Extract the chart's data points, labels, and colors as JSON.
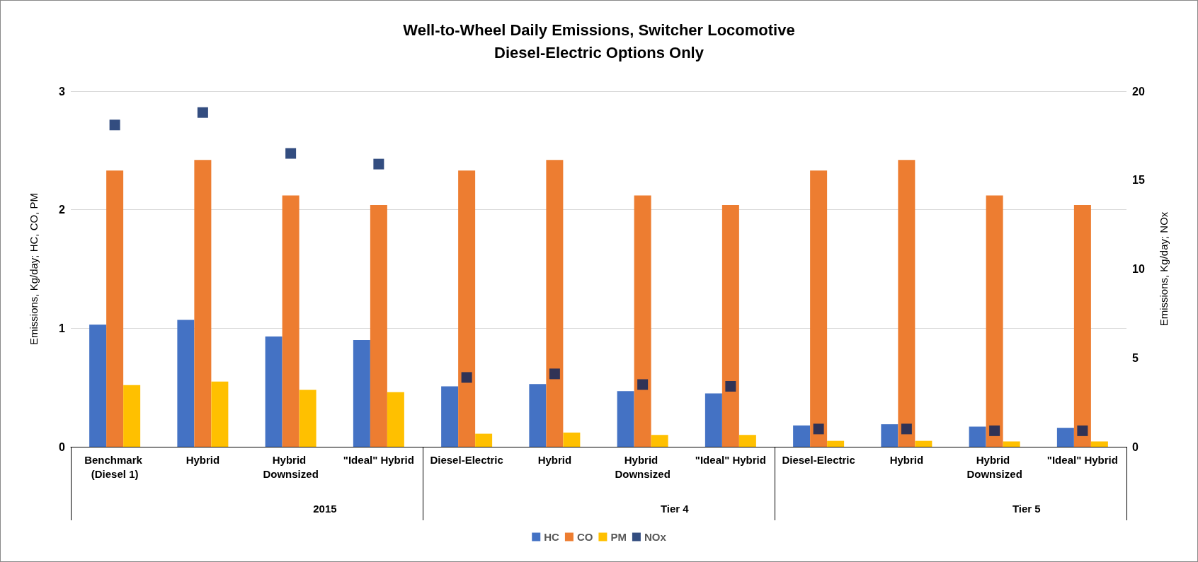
{
  "chart_data": {
    "type": "bar",
    "title": "Well-to-Wheel Daily Emissions, Switcher Locomotive\nDiesel-Electric Options Only",
    "ylabel": "Emissions, Kg/day; HC, CO, PM",
    "y2label": "Emissions, Kg/day; NOx",
    "categories": [
      "Benchmark (Diesel 1)",
      "Hybrid",
      "Hybrid Downsized",
      "\"Ideal\" Hybrid",
      "Diesel-Electric",
      "Hybrid",
      "Hybrid Downsized",
      "\"Ideal\" Hybrid",
      "Diesel-Electric",
      "Hybrid",
      "Hybrid Downsized",
      "\"Ideal\" Hybrid"
    ],
    "annotations": [
      "2015",
      "Tier 4",
      "Tier 5"
    ],
    "series": [
      {
        "name": "HC",
        "color": "#4472c4",
        "values": [
          1.03,
          1.07,
          0.93,
          0.9,
          0.51,
          0.53,
          0.47,
          0.45,
          0.18,
          0.19,
          0.17,
          0.16
        ]
      },
      {
        "name": "CO",
        "color": "#ed7d31",
        "values": [
          2.33,
          2.42,
          2.12,
          2.04,
          2.33,
          2.42,
          2.12,
          2.04,
          2.33,
          2.42,
          2.12,
          2.04
        ]
      },
      {
        "name": "PM",
        "color": "#ffc000",
        "values": [
          0.52,
          0.55,
          0.48,
          0.46,
          0.11,
          0.12,
          0.1,
          0.1,
          0.05,
          0.05,
          0.045,
          0.045
        ]
      },
      {
        "name": "NOx",
        "type": "scatter",
        "axis": "y2",
        "marker": "square",
        "color": "#002060",
        "values": [
          18.1,
          18.8,
          16.5,
          15.9,
          3.9,
          4.1,
          3.5,
          3.4,
          1.0,
          1.0,
          0.9,
          0.9
        ]
      }
    ],
    "ylim": [
      0,
      3
    ],
    "yticks": [
      0,
      1,
      2,
      3
    ],
    "y2lim": [
      0,
      20
    ],
    "y2ticks": [
      0,
      5,
      10,
      15,
      20
    ],
    "grid": "y",
    "legend": "bottom"
  }
}
